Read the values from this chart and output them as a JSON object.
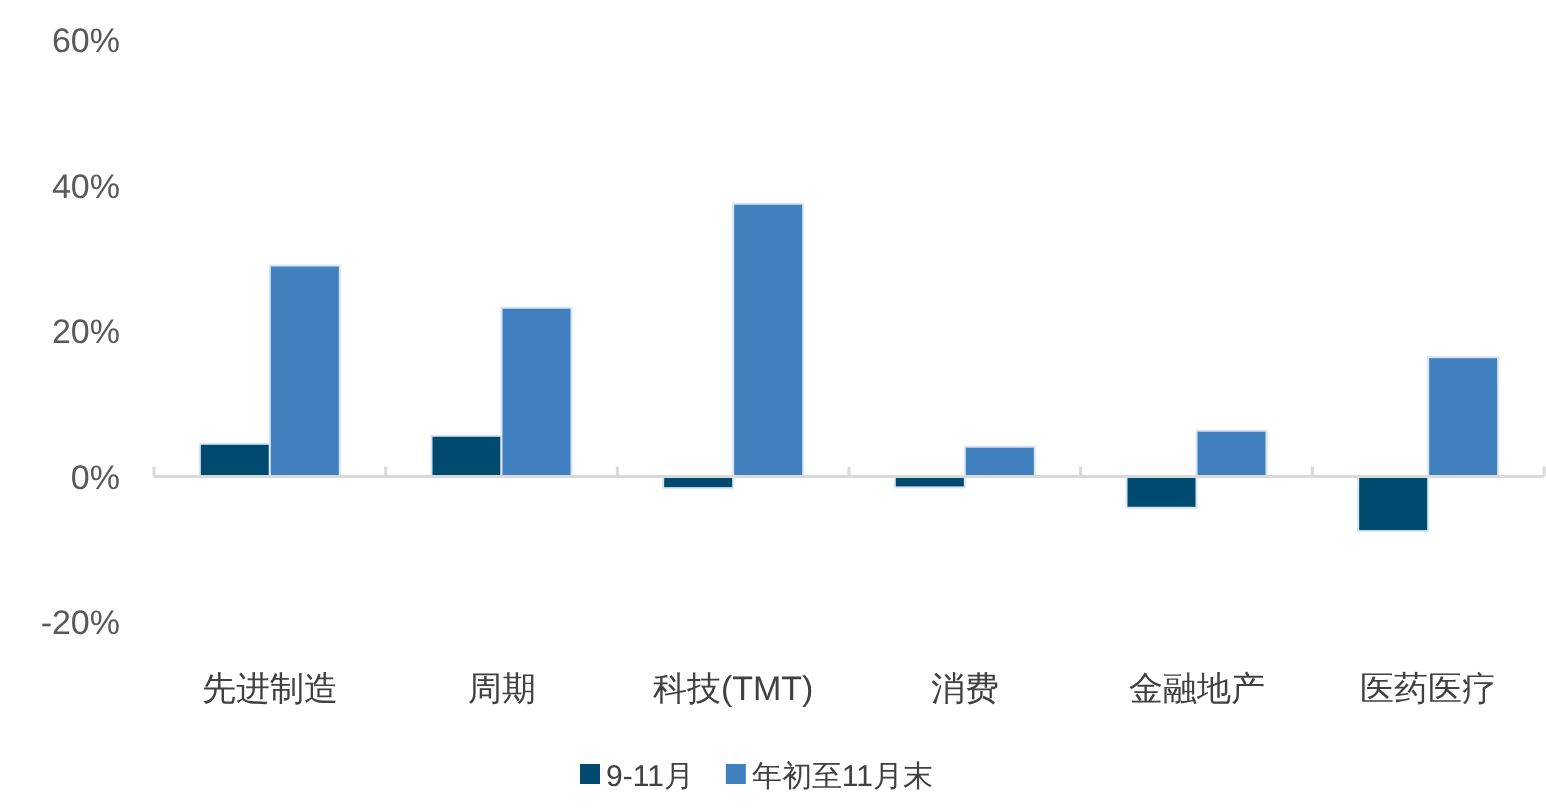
{
  "chart_data": {
    "type": "bar",
    "categories": [
      "先进制造",
      "周期",
      "科技(TMT)",
      "消费",
      "金融地产",
      "医药医疗"
    ],
    "series": [
      {
        "name": "9-11月",
        "color": "#004a70",
        "values": [
          4.5,
          5.6,
          -1.6,
          -1.5,
          -4.3,
          -7.5
        ]
      },
      {
        "name": "年初至11月末",
        "color": "#4180bf",
        "values": [
          29.0,
          23.2,
          37.5,
          4.1,
          6.3,
          16.4
        ]
      }
    ],
    "ylim": [
      -20,
      60
    ],
    "yticks": [
      {
        "value": -20,
        "label": "-20%"
      },
      {
        "value": 0,
        "label": "0%"
      },
      {
        "value": 20,
        "label": "20%"
      },
      {
        "value": 40,
        "label": "40%"
      },
      {
        "value": 60,
        "label": "60%"
      }
    ],
    "legend": "bottom"
  }
}
